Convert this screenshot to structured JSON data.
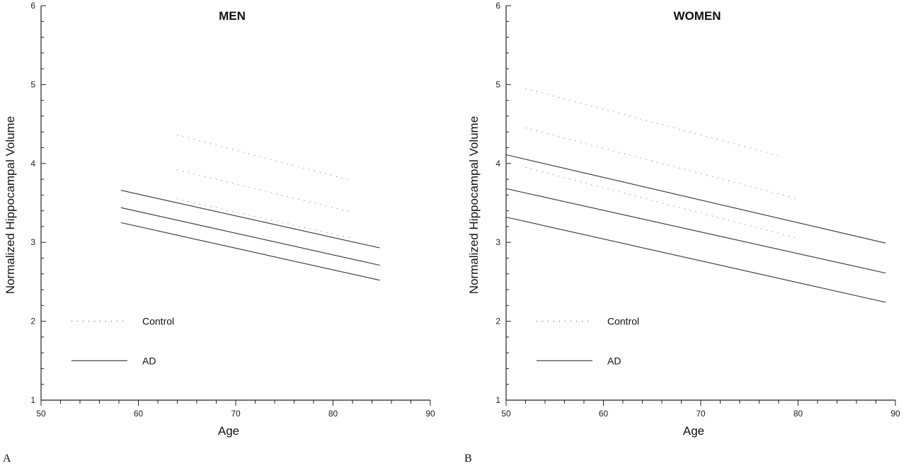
{
  "chart_data": [
    {
      "type": "line",
      "panel_label": "A",
      "title": "MEN",
      "xlabel": "Age",
      "ylabel": "Normalized  Hippocampal  Volume",
      "xlim": [
        50,
        90
      ],
      "ylim": [
        1,
        6
      ],
      "xticks": [
        50,
        60,
        70,
        80,
        90
      ],
      "yticks": [
        1,
        2,
        3,
        4,
        5,
        6
      ],
      "grid": false,
      "legend": [
        {
          "label": "Control",
          "style": "dotted"
        },
        {
          "label": "AD",
          "style": "solid"
        }
      ],
      "series": [
        {
          "group": "Control",
          "style": "dotted",
          "x": [
            64,
            82
          ],
          "y": [
            4.36,
            3.78
          ]
        },
        {
          "group": "Control",
          "style": "dotted",
          "x": [
            64,
            82
          ],
          "y": [
            3.92,
            3.38
          ]
        },
        {
          "group": "Control",
          "style": "dotted",
          "x": [
            64,
            82
          ],
          "y": [
            3.55,
            3.05
          ]
        },
        {
          "group": "AD",
          "style": "solid",
          "x": [
            58.2,
            84.8
          ],
          "y": [
            3.66,
            2.93
          ]
        },
        {
          "group": "AD",
          "style": "solid",
          "x": [
            58.2,
            84.8
          ],
          "y": [
            3.44,
            2.71
          ]
        },
        {
          "group": "AD",
          "style": "solid",
          "x": [
            58.2,
            84.8
          ],
          "y": [
            3.25,
            2.52
          ]
        }
      ]
    },
    {
      "type": "line",
      "panel_label": "B",
      "title": "WOMEN",
      "xlabel": "Age",
      "ylabel": "Normalized  Hippocampal  Volume",
      "xlim": [
        50,
        90
      ],
      "ylim": [
        1,
        6
      ],
      "xticks": [
        50,
        60,
        70,
        80,
        90
      ],
      "yticks": [
        1,
        2,
        3,
        4,
        5,
        6
      ],
      "grid": false,
      "legend": [
        {
          "label": "Control",
          "style": "dotted"
        },
        {
          "label": "AD",
          "style": "solid"
        }
      ],
      "series": [
        {
          "group": "Control",
          "style": "dotted",
          "x": [
            52,
            78
          ],
          "y": [
            4.95,
            4.1
          ]
        },
        {
          "group": "Control",
          "style": "dotted",
          "x": [
            52,
            80
          ],
          "y": [
            4.45,
            3.55
          ]
        },
        {
          "group": "Control",
          "style": "dotted",
          "x": [
            52,
            80
          ],
          "y": [
            3.95,
            3.05
          ]
        },
        {
          "group": "AD",
          "style": "solid",
          "x": [
            50,
            89
          ],
          "y": [
            4.11,
            2.99
          ]
        },
        {
          "group": "AD",
          "style": "solid",
          "x": [
            50,
            89
          ],
          "y": [
            3.68,
            2.61
          ]
        },
        {
          "group": "AD",
          "style": "solid",
          "x": [
            50,
            89
          ],
          "y": [
            3.32,
            2.24
          ]
        }
      ]
    }
  ],
  "colors": {
    "line": "#333333",
    "axis": "#222222",
    "background": "#ffffff"
  }
}
